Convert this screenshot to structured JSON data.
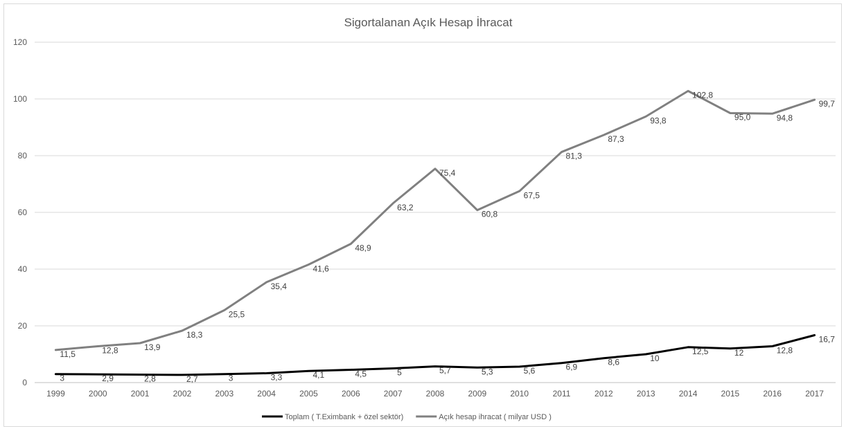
{
  "chart_data": {
    "type": "line",
    "title": "Sigortalanan Açık Hesap İhracat",
    "xlabel": "",
    "ylabel": "",
    "categories": [
      "1999",
      "2000",
      "2001",
      "2002",
      "2003",
      "2004",
      "2005",
      "2006",
      "2007",
      "2008",
      "2009",
      "2010",
      "2011",
      "2012",
      "2013",
      "2014",
      "2015",
      "2016",
      "2017"
    ],
    "ylim": [
      0,
      120
    ],
    "yticks": [
      0,
      20,
      40,
      60,
      80,
      100,
      120
    ],
    "grid": true,
    "legend_position": "bottom",
    "series": [
      {
        "name": "Toplam ( T.Eximbank + özel sektör)",
        "color": "#000000",
        "values": [
          3,
          2.9,
          2.8,
          2.7,
          3,
          3.3,
          4.1,
          4.5,
          5,
          5.7,
          5.3,
          5.6,
          6.9,
          8.6,
          10,
          12.5,
          12,
          12.8,
          16.7
        ],
        "labels": [
          "3",
          "2,9",
          "2,8",
          "2,7",
          "3",
          "3,3",
          "4,1",
          "4,5",
          "5",
          "5,7",
          "5,3",
          "5,6",
          "6,9",
          "8,6",
          "10",
          "12,5",
          "12",
          "12,8",
          "16,7"
        ]
      },
      {
        "name": "Açık hesap ihracat ( milyar USD )",
        "color": "#808080",
        "values": [
          11.5,
          12.8,
          13.9,
          18.3,
          25.5,
          35.4,
          41.6,
          48.9,
          63.2,
          75.4,
          60.8,
          67.5,
          81.3,
          87.3,
          93.8,
          102.8,
          95.0,
          94.8,
          99.7
        ],
        "labels": [
          "11,5",
          "12,8",
          "13,9",
          "18,3",
          "25,5",
          "35,4",
          "41,6",
          "48,9",
          "63,2",
          "75,4",
          "60,8",
          "67,5",
          "81,3",
          "87,3",
          "93,8",
          "102,8",
          "95,0",
          "94,8",
          "99,7"
        ]
      }
    ]
  }
}
